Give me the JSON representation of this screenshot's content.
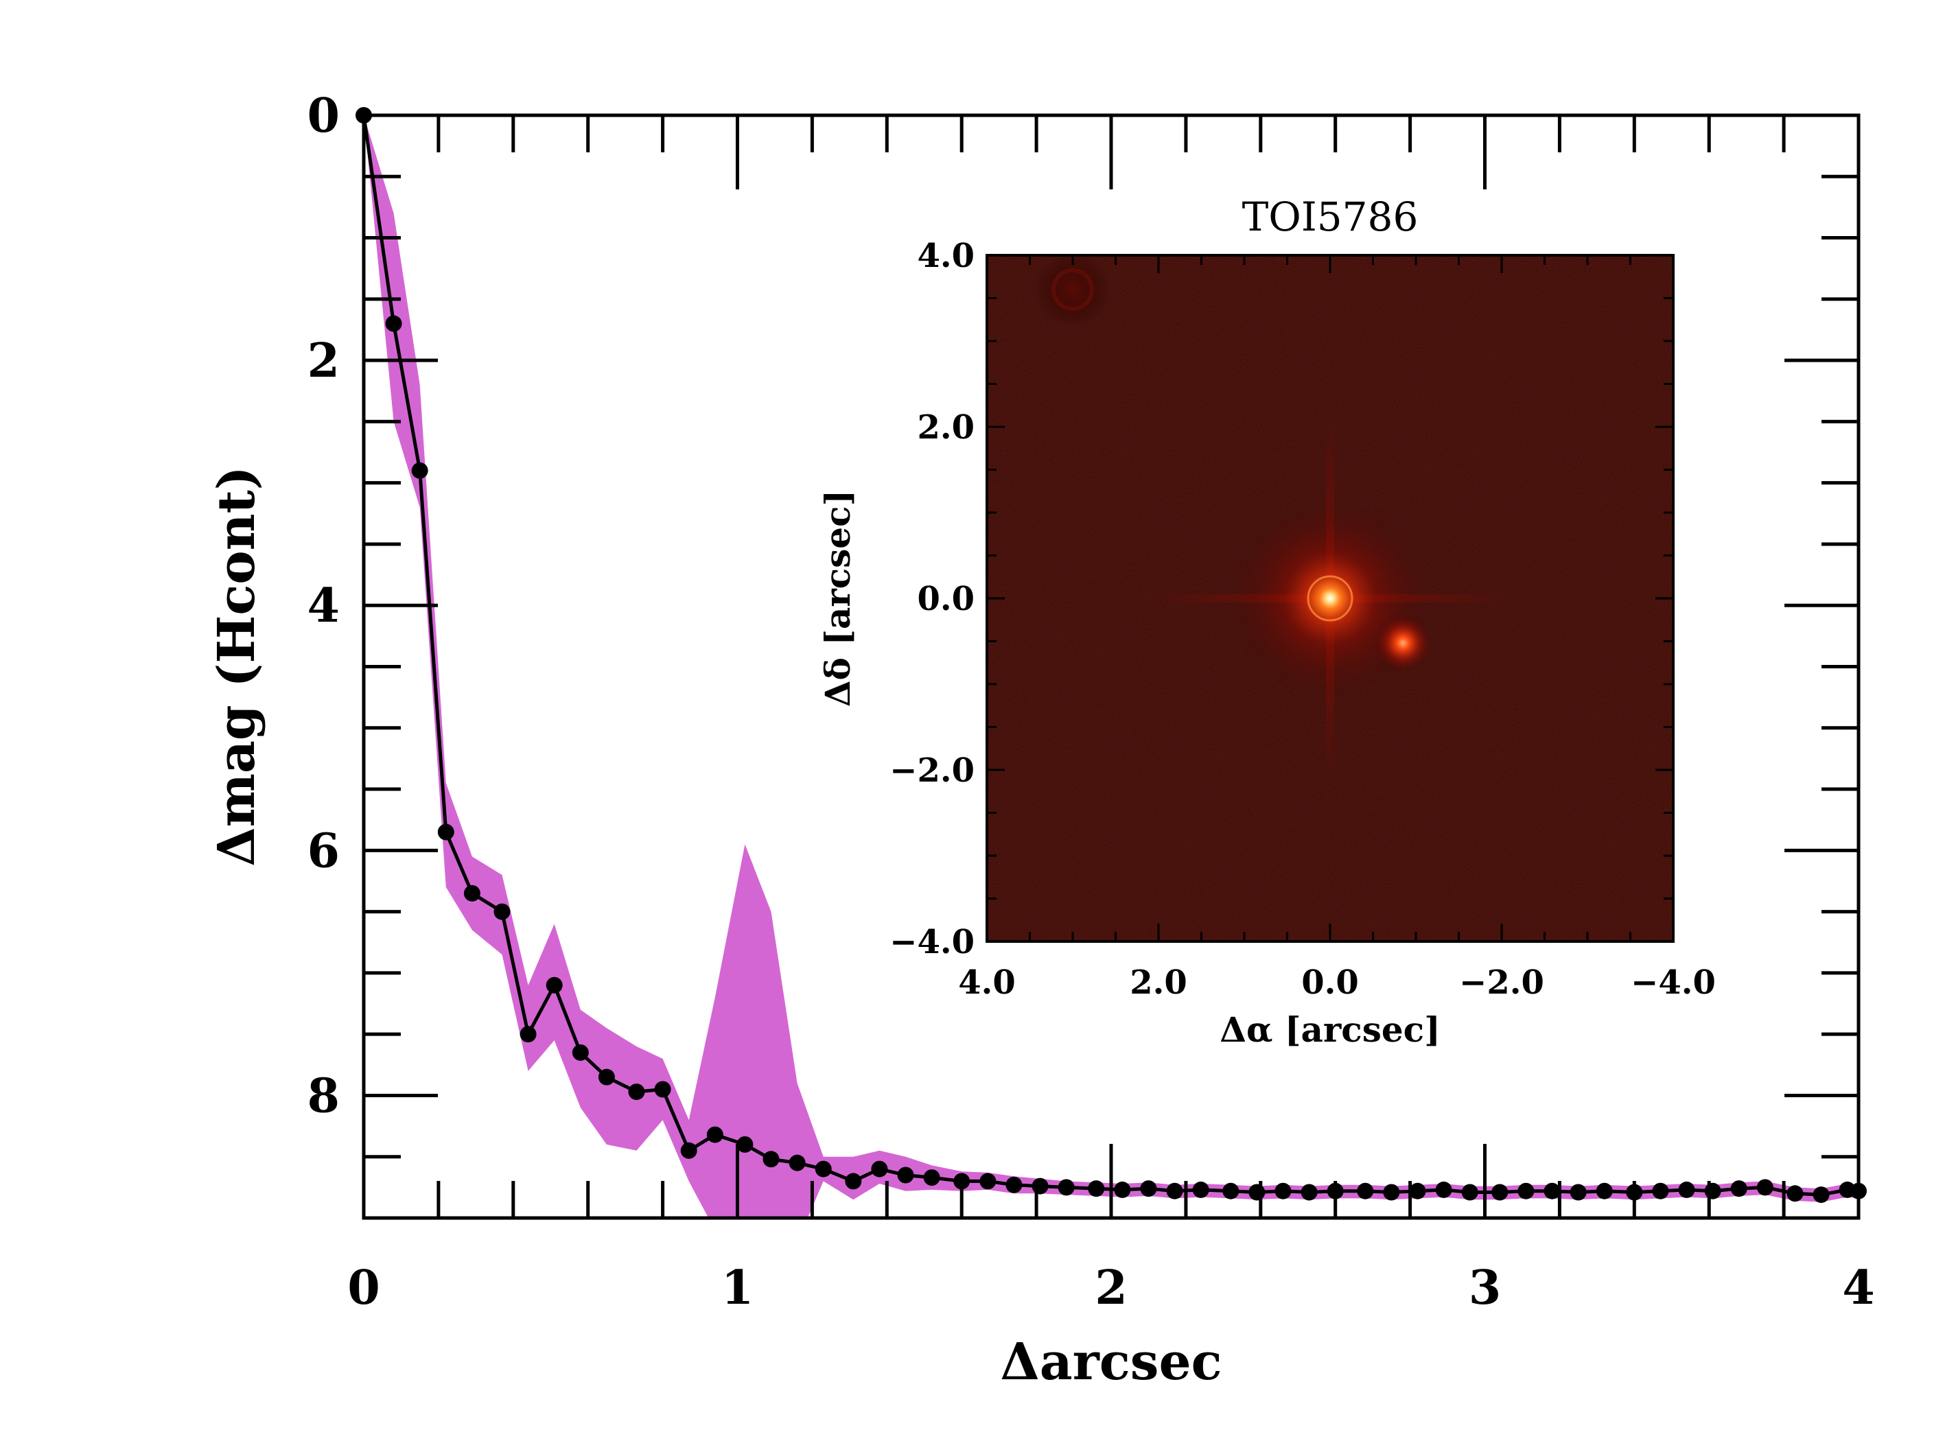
{
  "chart_data": [
    {
      "type": "line",
      "xlabel": "Δarcsec",
      "ylabel": "Δmag (Hcont)",
      "xlim": [
        0,
        4
      ],
      "ylim": [
        9.0,
        0
      ],
      "x_ticks": [
        "0",
        "1",
        "2",
        "3",
        "4"
      ],
      "y_ticks": [
        "0",
        "2",
        "4",
        "6",
        "8"
      ],
      "grid": false,
      "legend": "none",
      "colors": {
        "line": "#000000",
        "band": "#d466d4"
      },
      "series": [
        {
          "x": [
            0.0,
            0.08,
            0.15,
            0.22,
            0.29,
            0.37,
            0.44,
            0.51,
            0.58,
            0.65,
            0.73,
            0.8,
            0.87,
            0.94,
            1.02,
            1.09,
            1.16,
            1.23,
            1.31,
            1.38,
            1.45,
            1.52,
            1.6,
            1.67,
            1.74,
            1.81,
            1.88,
            1.96,
            2.03,
            2.1,
            2.17,
            2.24,
            2.32,
            2.39,
            2.46,
            2.53,
            2.6,
            2.68,
            2.75,
            2.82,
            2.89,
            2.96,
            3.04,
            3.11,
            3.18,
            3.25,
            3.32,
            3.4,
            3.47,
            3.54,
            3.61,
            3.68,
            3.75,
            3.83,
            3.9,
            3.97,
            4.0
          ],
          "values": [
            0.0,
            1.7,
            2.9,
            5.85,
            6.35,
            6.5,
            7.5,
            7.1,
            7.65,
            7.85,
            7.97,
            7.95,
            8.45,
            8.32,
            8.4,
            8.52,
            8.55,
            8.6,
            8.7,
            8.6,
            8.65,
            8.67,
            8.7,
            8.7,
            8.73,
            8.74,
            8.75,
            8.76,
            8.77,
            8.76,
            8.78,
            8.77,
            8.78,
            8.79,
            8.78,
            8.79,
            8.78,
            8.78,
            8.79,
            8.78,
            8.77,
            8.79,
            8.79,
            8.78,
            8.78,
            8.79,
            8.78,
            8.79,
            8.78,
            8.77,
            8.78,
            8.76,
            8.75,
            8.8,
            8.81,
            8.77,
            8.78
          ],
          "band_upper": [
            0.0,
            0.8,
            2.2,
            5.45,
            6.05,
            6.2,
            7.1,
            6.6,
            7.3,
            7.45,
            7.6,
            7.7,
            8.2,
            7.2,
            5.95,
            6.5,
            7.9,
            8.5,
            8.5,
            8.45,
            8.5,
            8.57,
            8.62,
            8.63,
            8.66,
            8.68,
            8.7,
            8.71,
            8.72,
            8.71,
            8.73,
            8.72,
            8.73,
            8.74,
            8.73,
            8.74,
            8.73,
            8.73,
            8.74,
            8.73,
            8.72,
            8.74,
            8.74,
            8.73,
            8.73,
            8.74,
            8.73,
            8.74,
            8.73,
            8.72,
            8.73,
            8.71,
            8.7,
            8.75,
            8.76,
            8.72,
            8.73
          ],
          "band_lower": [
            0.0,
            2.5,
            3.2,
            6.3,
            6.65,
            6.85,
            7.8,
            7.55,
            8.1,
            8.4,
            8.45,
            8.2,
            8.7,
            9.1,
            9.4,
            9.4,
            9.2,
            8.7,
            8.85,
            8.72,
            8.78,
            8.77,
            8.78,
            8.77,
            8.8,
            8.8,
            8.81,
            8.82,
            8.83,
            8.82,
            8.84,
            8.83,
            8.84,
            8.85,
            8.84,
            8.85,
            8.84,
            8.84,
            8.85,
            8.84,
            8.83,
            8.85,
            8.85,
            8.84,
            8.84,
            8.85,
            8.84,
            8.85,
            8.84,
            8.83,
            8.84,
            8.82,
            8.81,
            8.86,
            8.87,
            8.83,
            8.84
          ]
        }
      ]
    },
    {
      "type": "heatmap",
      "title": "TOI5786",
      "xlabel": "Δα [arcsec]",
      "ylabel": "Δδ [arcsec]",
      "xlim": [
        4.0,
        -4.0
      ],
      "ylim": [
        -4.0,
        4.0
      ],
      "x_ticks": [
        "4.0",
        "2.0",
        "0.0",
        "−2.0",
        "−4.0"
      ],
      "y_ticks": [
        "−4.0",
        "−2.0",
        "0.0",
        "2.0",
        "4.0"
      ],
      "colormap": [
        "#1e0302",
        "#8a0d04",
        "#ff4a10",
        "#ffcc66",
        "#ffffff"
      ],
      "sources": [
        {
          "x": 0.0,
          "y": 0.0,
          "brightness": 1.0
        },
        {
          "x": -0.85,
          "y": -0.52,
          "brightness": 0.45
        },
        {
          "x": 3.0,
          "y": 3.6,
          "brightness": 0.12
        }
      ]
    }
  ]
}
